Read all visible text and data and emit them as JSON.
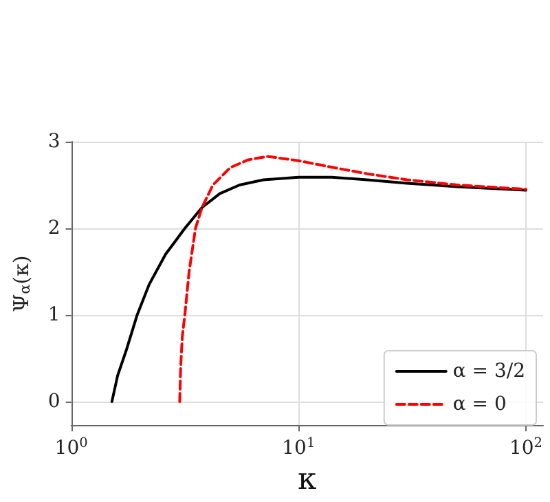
{
  "chart_data": {
    "type": "line",
    "xlabel": "κ",
    "ylabel": "Ψ$_{α}$(κ)",
    "log": "x",
    "grid": true,
    "legend": "bottom right",
    "xlim": [
      1,
      119
    ],
    "ylim": [
      -0.28,
      3
    ],
    "xticks": [
      {
        "value": 1,
        "label": "10$^{0}$"
      },
      {
        "value": 10,
        "label": "10$^{1}$"
      },
      {
        "value": 100,
        "label": "10$^{2}$"
      }
    ],
    "yticks": [
      0,
      1,
      2,
      3
    ],
    "series": [
      {
        "name": "α = 3/2",
        "color": "#000000",
        "line_style": "solid",
        "x": [
          1.51,
          1.6,
          1.75,
          1.95,
          2.2,
          2.6,
          3.16,
          3.76,
          4.5,
          5.5,
          7,
          10,
          14,
          20,
          30,
          50,
          100
        ],
        "values": [
          0,
          0.3,
          0.6,
          1.0,
          1.35,
          1.7,
          2.0,
          2.24,
          2.4,
          2.5,
          2.56,
          2.59,
          2.59,
          2.56,
          2.52,
          2.48,
          2.44
        ]
      },
      {
        "name": "α = 0",
        "color": "#ff0000",
        "line_style": "dashed",
        "x": [
          3.0,
          3.03,
          3.08,
          3.16,
          3.3,
          3.52,
          3.76,
          4.2,
          5,
          6,
          7.3,
          10,
          15,
          20,
          30,
          50,
          100
        ],
        "values": [
          0,
          0.4,
          0.75,
          1.0,
          1.5,
          2.0,
          2.24,
          2.5,
          2.7,
          2.79,
          2.83,
          2.78,
          2.69,
          2.63,
          2.56,
          2.5,
          2.45
        ]
      }
    ]
  }
}
